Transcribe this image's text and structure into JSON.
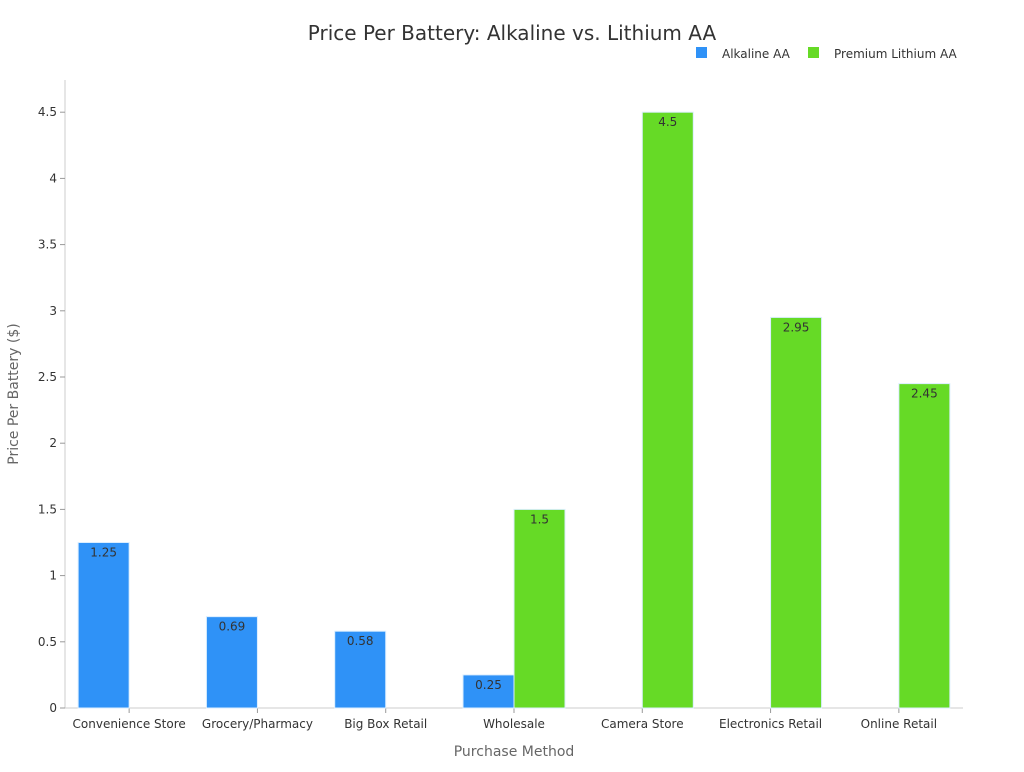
{
  "chart_data": {
    "type": "bar",
    "title": "Price Per Battery: Alkaline vs. Lithium AA",
    "xlabel": "Purchase Method",
    "ylabel": "Price Per Battery ($)",
    "categories": [
      "Convenience Store",
      "Grocery/Pharmacy",
      "Big Box Retail",
      "Wholesale",
      "Camera Store",
      "Electronics Retail",
      "Online Retail"
    ],
    "series": [
      {
        "name": "Alkaline AA",
        "color": "#2f92f7",
        "values": [
          1.25,
          0.69,
          0.58,
          0.25,
          null,
          null,
          null
        ]
      },
      {
        "name": "Premium Lithium AA",
        "color": "#66da26",
        "values": [
          null,
          null,
          null,
          1.5,
          4.5,
          2.95,
          2.45
        ]
      }
    ],
    "yticks": [
      "0",
      "0.5",
      "1",
      "1.5",
      "2",
      "2.5",
      "3",
      "3.5",
      "4",
      "4.5"
    ],
    "ylim": [
      0,
      4.74
    ],
    "grid": false,
    "legend": "top-right",
    "data_labels": true
  }
}
